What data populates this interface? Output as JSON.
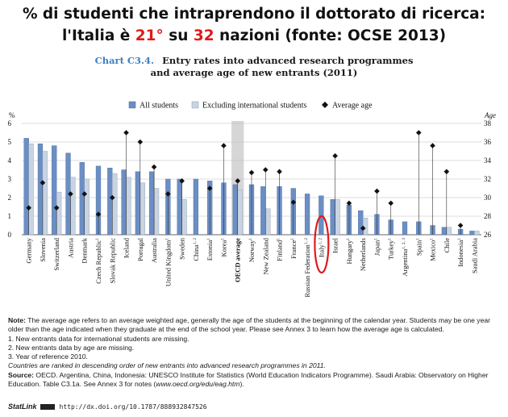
{
  "headline": {
    "line1": "% di studenti che intraprendono il dottorato di ricerca:",
    "line2_a": "l'Italia è ",
    "line2_rank": "21°",
    "line2_b": " su ",
    "line2_total": "32",
    "line2_c": " nazioni (fonte: OCSE 2013)"
  },
  "chart_label": {
    "number": "Chart C3.4.",
    "title_line1": "Entry rates into advanced research programmes",
    "title_line2": "and average age of new entrants (2011)"
  },
  "colors": {
    "all_students": "#6b8ec4",
    "excluding_international": "#c9d4e3",
    "average_age": "#111111",
    "highlight_band": "#d6d6d6",
    "italy_ring": "#e1191b",
    "accent_red": "#e1191b",
    "chart_number": "#3d7fc1"
  },
  "chart_data": {
    "type": "bar",
    "legend": {
      "position": "top",
      "all_students": "All students",
      "excluding_international": "Excluding international students",
      "average_age": "Average age"
    },
    "y_left": {
      "label": "%",
      "ticks": [
        0,
        1,
        2,
        3,
        4,
        5,
        6
      ],
      "range": [
        0,
        6
      ]
    },
    "y_right": {
      "label": "Age",
      "ticks": [
        26,
        28,
        30,
        32,
        34,
        36,
        38
      ],
      "range": [
        26,
        38
      ]
    },
    "grid": true,
    "highlight_category": "OECD average",
    "circled_category": "Italy",
    "countries": [
      {
        "name": "Germany",
        "sup": "",
        "all": 5.2,
        "excl": 4.9,
        "age": 28.9
      },
      {
        "name": "Slovenia",
        "sup": "",
        "all": 4.9,
        "excl": 4.5,
        "age": 31.6
      },
      {
        "name": "Switzerland",
        "sup": "",
        "all": 4.8,
        "excl": 2.3,
        "age": 28.9
      },
      {
        "name": "Austria",
        "sup": "",
        "all": 4.4,
        "excl": 3.1,
        "age": 30.4
      },
      {
        "name": "Denmark",
        "sup": "",
        "all": 3.9,
        "excl": 3.0,
        "age": 30.4
      },
      {
        "name": "Czech Republic",
        "sup": "1",
        "all": 3.7,
        "excl": null,
        "age": 28.2
      },
      {
        "name": "Slovak Republic",
        "sup": "",
        "all": 3.6,
        "excl": 3.3,
        "age": 30.0
      },
      {
        "name": "Iceland",
        "sup": "",
        "all": 3.5,
        "excl": 3.1,
        "age": 37.0
      },
      {
        "name": "Portugal",
        "sup": "",
        "all": 3.4,
        "excl": 2.8,
        "age": 36.0
      },
      {
        "name": "Australia",
        "sup": "",
        "all": 3.4,
        "excl": 2.5,
        "age": 33.3
      },
      {
        "name": "United Kingdom",
        "sup": "1",
        "all": 3.0,
        "excl": null,
        "age": 30.4
      },
      {
        "name": "Sweden",
        "sup": "",
        "all": 3.0,
        "excl": 1.9,
        "age": 31.8
      },
      {
        "name": "China",
        "sup": "1, 2",
        "all": 3.0,
        "excl": null,
        "age": null
      },
      {
        "name": "Estonia",
        "sup": "1",
        "all": 2.9,
        "excl": null,
        "age": 31.0
      },
      {
        "name": "Korea",
        "sup": "1",
        "all": 2.8,
        "excl": null,
        "age": 35.6
      },
      {
        "name": "OECD average",
        "sup": "",
        "all": 2.7,
        "excl": 2.4,
        "age": 31.8,
        "highlight": true
      },
      {
        "name": "Norway",
        "sup": "1",
        "all": 2.7,
        "excl": null,
        "age": 32.7
      },
      {
        "name": "New Zealand",
        "sup": "",
        "all": 2.6,
        "excl": 1.4,
        "age": 33.0
      },
      {
        "name": "Finland",
        "sup": "1",
        "all": 2.6,
        "excl": null,
        "age": 32.8
      },
      {
        "name": "France",
        "sup": "1",
        "all": 2.5,
        "excl": null,
        "age": 29.5
      },
      {
        "name": "Russian Federation",
        "sup": "1, 2",
        "all": 2.2,
        "excl": null,
        "age": null
      },
      {
        "name": "Italy",
        "sup": "1, 2",
        "all": 2.1,
        "excl": null,
        "age": null
      },
      {
        "name": "Israel",
        "sup": "",
        "all": 1.9,
        "excl": 1.9,
        "age": 34.5
      },
      {
        "name": "Hungary",
        "sup": "1",
        "all": 1.6,
        "excl": null,
        "age": 29.4
      },
      {
        "name": "Netherlands",
        "sup": "",
        "all": 1.3,
        "excl": 0.9,
        "age": 26.7
      },
      {
        "name": "Japan",
        "sup": "1",
        "all": 1.1,
        "excl": null,
        "age": 30.7
      },
      {
        "name": "Turkey",
        "sup": "1",
        "all": 0.8,
        "excl": null,
        "age": 29.4
      },
      {
        "name": "Argentina",
        "sup": "1, 2, 3",
        "all": 0.7,
        "excl": null,
        "age": null
      },
      {
        "name": "Spain",
        "sup": "1",
        "all": 0.7,
        "excl": null,
        "age": 37.0
      },
      {
        "name": "Mexico",
        "sup": "1",
        "all": 0.5,
        "excl": null,
        "age": 35.6
      },
      {
        "name": "Chile",
        "sup": "",
        "all": 0.4,
        "excl": 0.4,
        "age": 32.8
      },
      {
        "name": "Indonesia",
        "sup": "1",
        "all": 0.3,
        "excl": null,
        "age": 27.0
      },
      {
        "name": "Saudi Arabia",
        "sup": "",
        "all": 0.2,
        "excl": 0.2,
        "age": null
      }
    ]
  },
  "notes": {
    "note_label": "Note:",
    "note_text": " The average age refers to an average weighted age, generally the age of the students at the beginning of the calendar year. Students may be one year older than the age indicated when they graduate at the end of the school year. Please see Annex 3 to learn how the average age is calculated.",
    "fn1": "1. New entrants data for international students are missing.",
    "fn2": "2. New entrants data by age are missing.",
    "fn3": "3. Year of reference 2010.",
    "ranking": "Countries are ranked in descending order of new entrants into advanced research programmes in 2011.",
    "source_label": "Source:",
    "source_text_a": " OECD. Argentina, China, Indonesia: UNESCO Institute for Statistics (World Education Indicators Programme). Saudi Arabia: Observatory on Higher Education. Table C3.1a. See Annex 3 for notes (",
    "source_url": "www.oecd.org/edu/eag.htm",
    "source_text_b": ")."
  },
  "statlink": {
    "label": "StatLink",
    "url": "http://dx.doi.org/10.1787/888932847526"
  }
}
